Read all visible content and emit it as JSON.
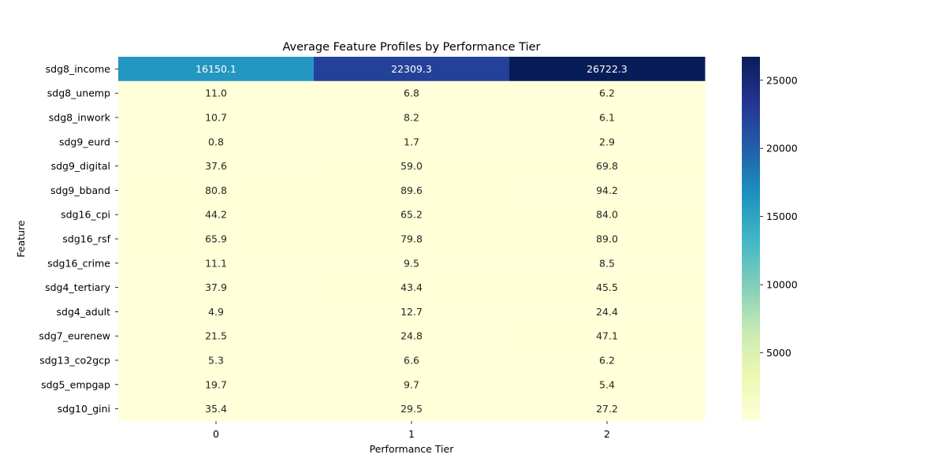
{
  "chart_data": {
    "type": "heatmap",
    "title": "Average Feature Profiles by Performance Tier",
    "xlabel": "Performance Tier",
    "ylabel": "Feature",
    "columns": [
      "0",
      "1",
      "2"
    ],
    "rows": [
      "sdg8_income",
      "sdg8_unemp",
      "sdg8_inwork",
      "sdg9_eurd",
      "sdg9_digital",
      "sdg9_bband",
      "sdg16_cpi",
      "sdg16_rsf",
      "sdg16_crime",
      "sdg4_tertiary",
      "sdg4_adult",
      "sdg7_eurenew",
      "sdg13_co2gcp",
      "sdg5_empgap",
      "sdg10_gini"
    ],
    "values": [
      [
        16150.1,
        22309.3,
        26722.3
      ],
      [
        11.0,
        6.8,
        6.2
      ],
      [
        10.7,
        8.2,
        6.1
      ],
      [
        0.8,
        1.7,
        2.9
      ],
      [
        37.6,
        59.0,
        69.8
      ],
      [
        80.8,
        89.6,
        94.2
      ],
      [
        44.2,
        65.2,
        84.0
      ],
      [
        65.9,
        79.8,
        89.0
      ],
      [
        11.1,
        9.5,
        8.5
      ],
      [
        37.9,
        43.4,
        45.5
      ],
      [
        4.9,
        12.7,
        24.4
      ],
      [
        21.5,
        24.8,
        47.1
      ],
      [
        5.3,
        6.6,
        6.2
      ],
      [
        19.7,
        9.7,
        5.4
      ],
      [
        35.4,
        29.5,
        27.2
      ]
    ],
    "colormap": "YlGnBu",
    "colorbar": {
      "min": 0.8,
      "max": 26722.3,
      "ticks": [
        5000,
        10000,
        15000,
        20000,
        25000
      ]
    }
  }
}
